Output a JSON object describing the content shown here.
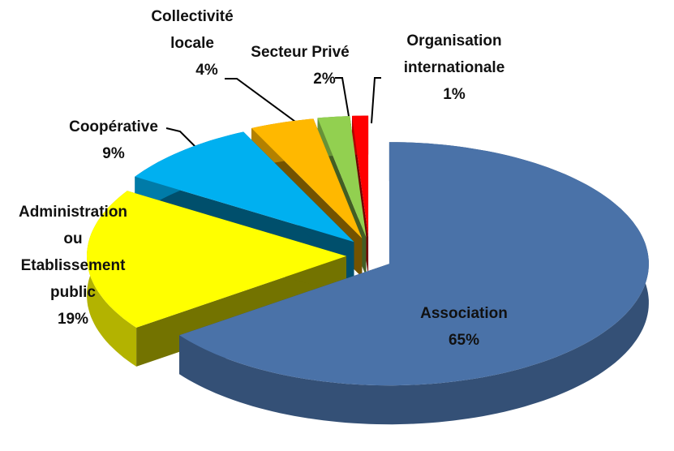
{
  "chart_data": {
    "type": "pie",
    "categories": [
      "Association",
      "Administration ou Etablissement public",
      "Coopérative",
      "Collectivité locale",
      "Secteur Privé",
      "Organisation internationale"
    ],
    "values": [
      65,
      19,
      9,
      4,
      2,
      1
    ],
    "value_labels": [
      "65%",
      "19%",
      "9%",
      "4%",
      "2%",
      "1%"
    ],
    "colors": [
      "#4a72a8",
      "#ffff00",
      "#00b0f0",
      "#ffb800",
      "#92d050",
      "#ff0000"
    ],
    "three_d": true,
    "exploded": true
  }
}
